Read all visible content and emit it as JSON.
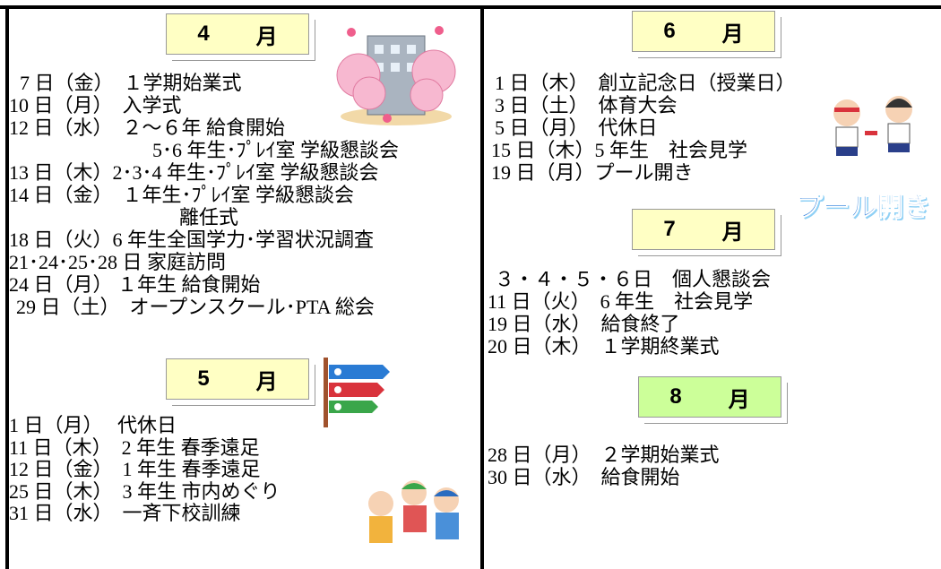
{
  "months": [
    {
      "number": "4",
      "unit": "月",
      "lines": [
        "7 日（金）　１学期始業式",
        "10 日（月）　入学式",
        "12 日（水）　２～６年 給食開始",
        "5･6 年生･ﾌﾟﾚｲ室 学級懇談会",
        "13 日（木）2･3･4 年生･ﾌﾟﾚｲ室 学級懇談会",
        "14 日（金）　１年生･ﾌﾟﾚｲ室 学級懇談会",
        "離任式",
        "18 日（火）6 年生全国学力･学習状況調査",
        "21･24･25･28 日 家庭訪問",
        "24 日（月） １年生 給食開始",
        "29 日（土）　オープンスクール･PTA 総会"
      ]
    },
    {
      "number": "5",
      "unit": "月",
      "lines": [
        "1 日（月）　 代休日",
        "11 日（木）　2 年生 春季遠足",
        "12 日（金）　1 年生 春季遠足",
        "25 日（木）　3 年生 市内めぐり",
        "31 日（水）　一斉下校訓練"
      ]
    },
    {
      "number": "6",
      "unit": "月",
      "lines": [
        "1 日（木）　創立記念日（授業日）",
        "3 日（土）　体育大会",
        "5 日（月）　代休日",
        "15 日（木）5 年生　社会見学",
        "19 日（月）プール開き"
      ]
    },
    {
      "number": "7",
      "unit": "月",
      "lines": [
        "３・４・５・６日　個人懇談会",
        "11 日（火）　6 年生　社会見学",
        "19 日（水）　給食終了",
        "20 日（木）　１学期終業式"
      ]
    },
    {
      "number": "8",
      "unit": "月",
      "lines": [
        "28 日（月）　２学期始業式",
        "30 日（水）　給食開始"
      ]
    }
  ],
  "pool_sign": "プール開き"
}
